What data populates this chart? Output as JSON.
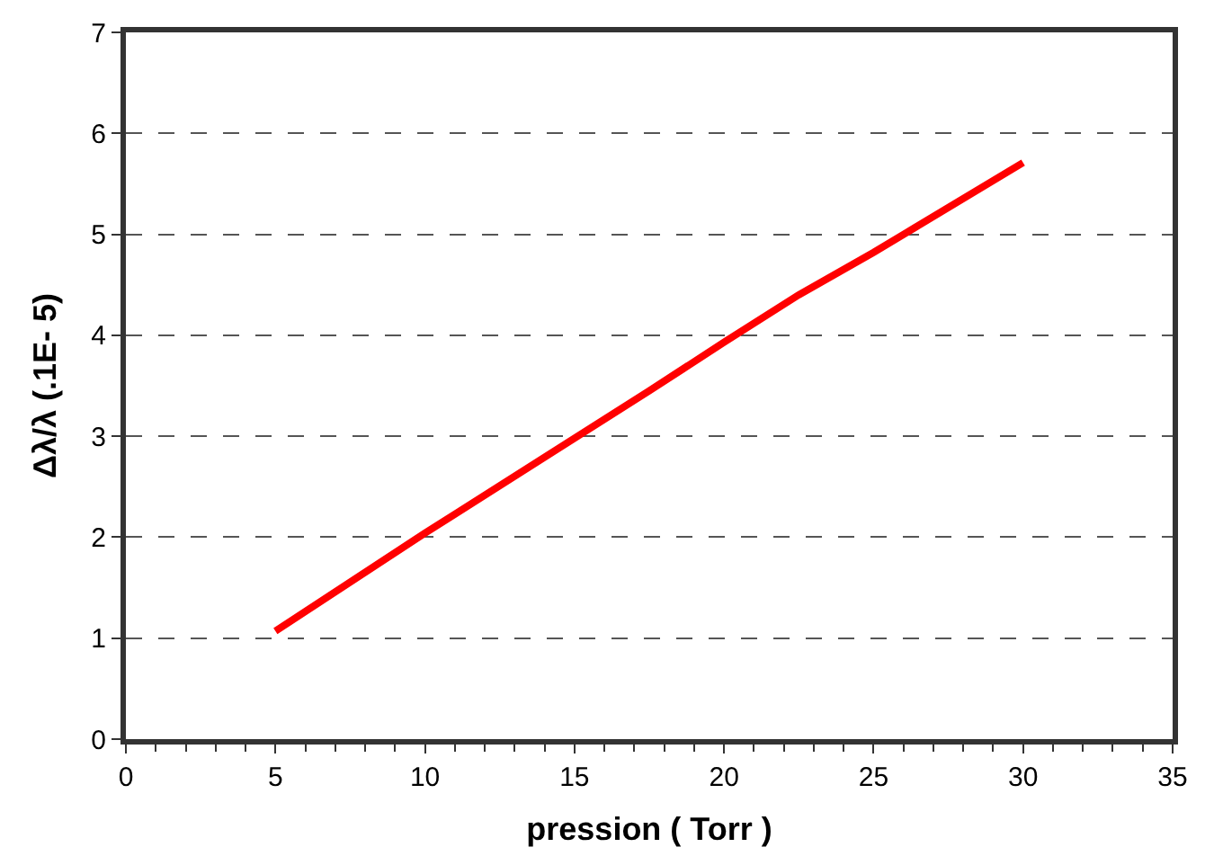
{
  "chart_data": {
    "type": "line",
    "xlabel": "pression ( Torr )",
    "ylabel": "Δλ/λ (.1E- 5)",
    "x": [
      5,
      10,
      15,
      17.5,
      20,
      22.5,
      25,
      30
    ],
    "series": [
      {
        "color": "#ff0000",
        "values": [
          1.07,
          2.04,
          2.98,
          3.45,
          3.93,
          4.4,
          4.82,
          5.71
        ]
      }
    ],
    "xlim": [
      0,
      35
    ],
    "xticks": [
      0,
      5,
      10,
      15,
      20,
      25,
      30,
      35
    ],
    "ylim": [
      0,
      7
    ],
    "yticks": [
      0,
      1,
      2,
      3,
      4,
      5,
      6,
      7
    ],
    "grid": "y",
    "line_style": "solid",
    "marker": "none"
  }
}
